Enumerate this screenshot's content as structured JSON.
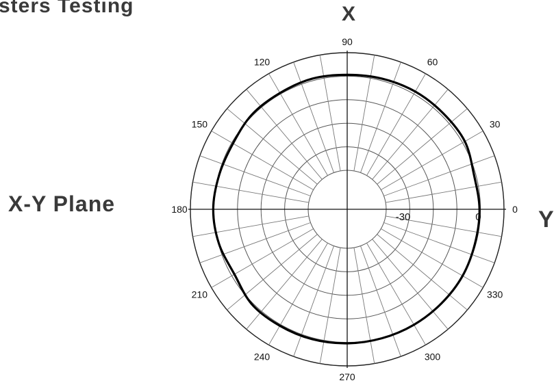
{
  "title": "sters Testing",
  "plane_label": "X-Y Plane",
  "axis_x_label": "X",
  "axis_y_label": "Y",
  "chart_data": {
    "type": "line",
    "subtype": "polar",
    "angle_unit": "degrees",
    "angle_ticks": [
      "0",
      "30",
      "60",
      "90",
      "120",
      "150",
      "180",
      "210",
      "240",
      "270",
      "300",
      "330"
    ],
    "radial_ticks": [
      "-30",
      "0"
    ],
    "radial_range": [
      -40,
      10
    ],
    "grid": true,
    "series": [
      {
        "angles": [
          0,
          15,
          30,
          45,
          60,
          75,
          90,
          105,
          120,
          135,
          150,
          165,
          180,
          195,
          210,
          225,
          240,
          255,
          270,
          285,
          300,
          315,
          330,
          345
        ],
        "values": [
          -0.4,
          -0.8,
          1.1,
          1.1,
          1.2,
          0.9,
          0.6,
          0.9,
          0.5,
          0.5,
          -0.6,
          -0.3,
          0.3,
          -0.2,
          -1.3,
          0.6,
          0.6,
          0.6,
          0.4,
          0.2,
          0.1,
          0.0,
          0.0,
          -0.4
        ]
      }
    ]
  }
}
